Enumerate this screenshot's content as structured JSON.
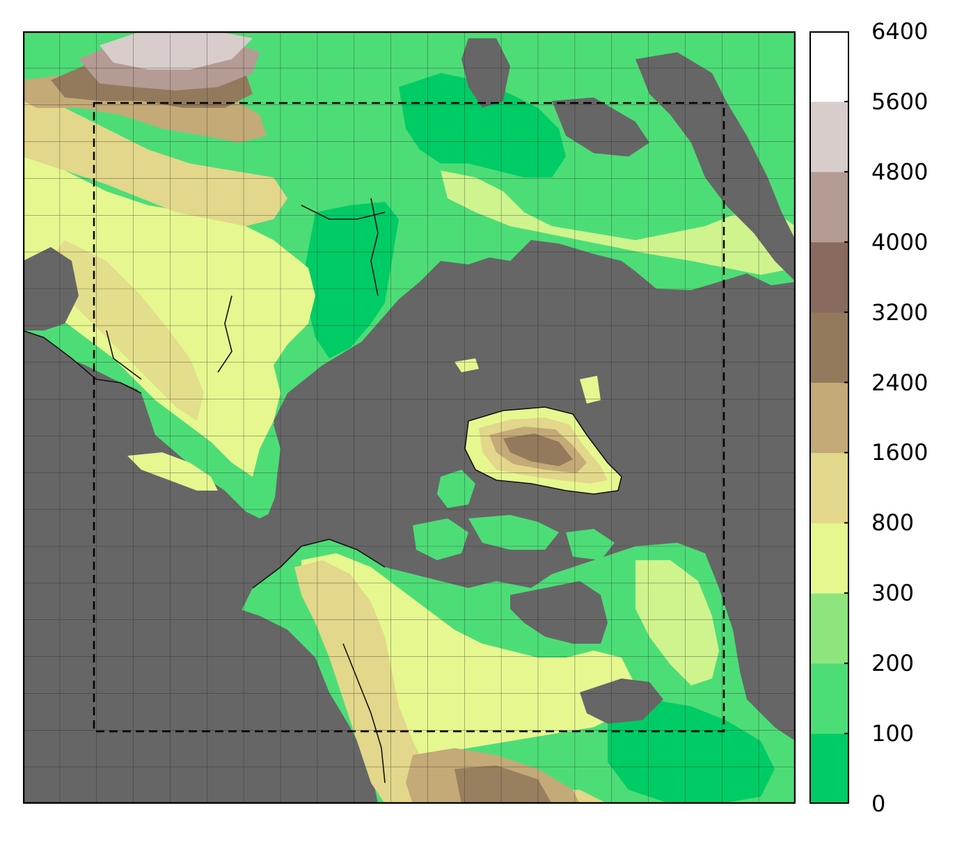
{
  "map": {
    "land_mask_color": "#666666",
    "coastline_color": "#111111",
    "grid_color": "#222222",
    "domain_box_style": "dashed"
  },
  "colorbar": {
    "levels": [
      "0",
      "100",
      "200",
      "300",
      "800",
      "1600",
      "2400",
      "3200",
      "4000",
      "4800",
      "5600",
      "6400"
    ],
    "colors": [
      "#00cc66",
      "#4ddd77",
      "#8ee57e",
      "#e6f790",
      "#e2d78a",
      "#c3aa77",
      "#937a5c",
      "#886a5e",
      "#b49b94",
      "#d8cdcb",
      "#ffffff"
    ]
  }
}
